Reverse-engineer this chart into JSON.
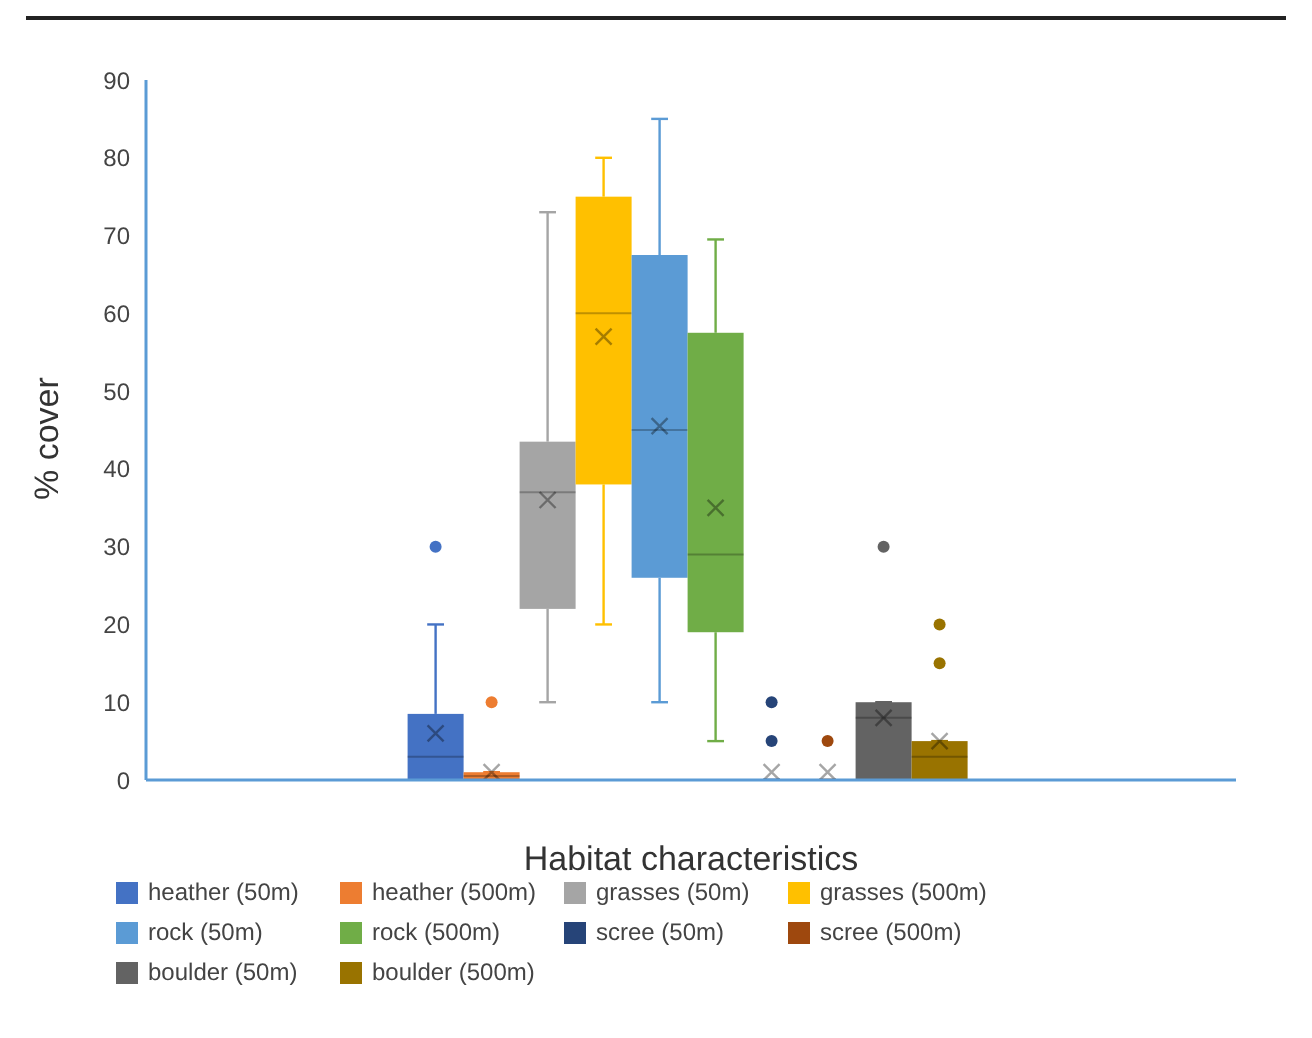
{
  "chart_data": {
    "type": "box",
    "xlabel": "Habitat characteristics",
    "ylabel": "% cover",
    "categories": [
      null
    ],
    "ylim": [
      0,
      90
    ],
    "yticks": [
      0,
      10,
      20,
      30,
      40,
      50,
      60,
      70,
      80,
      90
    ],
    "legend": "bottom",
    "series": [
      {
        "name": "heather (50m)",
        "color": "#4472c4",
        "boxes": [
          {
            "low": 0,
            "q1": 0,
            "median": 3,
            "q3": 8.5,
            "high": 20,
            "mean": 6,
            "outliers": [
              30
            ]
          }
        ]
      },
      {
        "name": "heather (500m)",
        "color": "#ed7d31",
        "boxes": [
          {
            "low": 0,
            "q1": 0,
            "median": 0.5,
            "q3": 1,
            "high": 1,
            "mean": 1,
            "outliers": [
              10
            ]
          }
        ]
      },
      {
        "name": "grasses (50m)",
        "color": "#a5a5a5",
        "boxes": [
          {
            "low": 10,
            "q1": 22,
            "median": 37,
            "q3": 43.5,
            "high": 73,
            "mean": 36
          }
        ]
      },
      {
        "name": "grasses (500m)",
        "color": "#ffc000",
        "boxes": [
          {
            "low": 20,
            "q1": 38,
            "median": 60,
            "q3": 75,
            "high": 80,
            "mean": 57
          }
        ]
      },
      {
        "name": "rock (50m)",
        "color": "#5b9bd5",
        "boxes": [
          {
            "low": 10,
            "q1": 26,
            "median": 45,
            "q3": 67.5,
            "high": 85,
            "mean": 45.5
          }
        ]
      },
      {
        "name": "rock (500m)",
        "color": "#70ad47",
        "boxes": [
          {
            "low": 5,
            "q1": 19,
            "median": 29,
            "q3": 57.5,
            "high": 69.5,
            "mean": 35
          }
        ]
      },
      {
        "name": "scree (50m)",
        "color": "#264478",
        "boxes": [
          {
            "low": 0,
            "q1": 0,
            "median": 0,
            "q3": 0,
            "high": 0,
            "mean": 1,
            "outliers": [
              5,
              10
            ]
          }
        ]
      },
      {
        "name": "scree (500m)",
        "color": "#9e480e",
        "boxes": [
          {
            "low": 0,
            "q1": 0,
            "median": 0,
            "q3": 0,
            "high": 0,
            "mean": 1,
            "outliers": [
              5
            ]
          }
        ]
      },
      {
        "name": "boulder (50m)",
        "color": "#636363",
        "boxes": [
          {
            "low": 0,
            "q1": 0,
            "median": 8,
            "q3": 10,
            "high": 10,
            "mean": 8,
            "outliers": [
              30
            ]
          }
        ]
      },
      {
        "name": "boulder (500m)",
        "color": "#997300",
        "boxes": [
          {
            "low": 0,
            "q1": 0,
            "median": 3,
            "q3": 5,
            "high": 5,
            "mean": 5,
            "outliers": [
              15,
              20
            ]
          }
        ]
      }
    ]
  }
}
